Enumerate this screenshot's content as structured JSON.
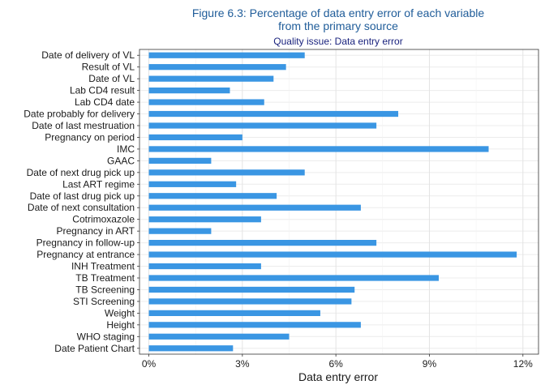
{
  "chart_data": {
    "type": "bar",
    "orientation": "horizontal",
    "title": "Figure 6.3: Percentage of data entry error of each variable",
    "title_line2": "from the primary source",
    "subtitle": "Quality issue: Data entry error",
    "xlabel": "Data entry error",
    "ylabel": "",
    "xlim": [
      -0.3,
      12.5
    ],
    "x_ticks": [
      0,
      3,
      6,
      9,
      12
    ],
    "x_tick_labels": [
      "0%",
      "3%",
      "6%",
      "9%",
      "12%"
    ],
    "grid": true,
    "bar_color": "#3a96e3",
    "categories": [
      "Date of delivery of VL",
      "Result of VL",
      "Date of VL",
      "Lab CD4 result",
      "Lab CD4 date",
      "Date probably for delivery",
      "Date of last mestruation",
      "Pregnancy on period",
      "IMC",
      "GAAC",
      "Date of next drug pick up",
      "Last ART regime",
      "Date of last drug pick up",
      "Date of next consultation",
      "Cotrimoxazole",
      "Pregnancy in ART",
      "Pregnancy in follow-up",
      "Pregnancy at entrance",
      "INH Treatment",
      "TB Treatment",
      "TB Screening",
      "STI Screening",
      "Weight",
      "Height",
      "WHO staging",
      "Date Patient Chart"
    ],
    "values": [
      5.0,
      4.4,
      4.0,
      2.6,
      3.7,
      8.0,
      7.3,
      3.0,
      10.9,
      2.0,
      5.0,
      2.8,
      4.1,
      6.8,
      3.6,
      2.0,
      7.3,
      11.8,
      3.6,
      9.3,
      6.6,
      6.5,
      5.5,
      6.8,
      4.5,
      2.7
    ]
  }
}
